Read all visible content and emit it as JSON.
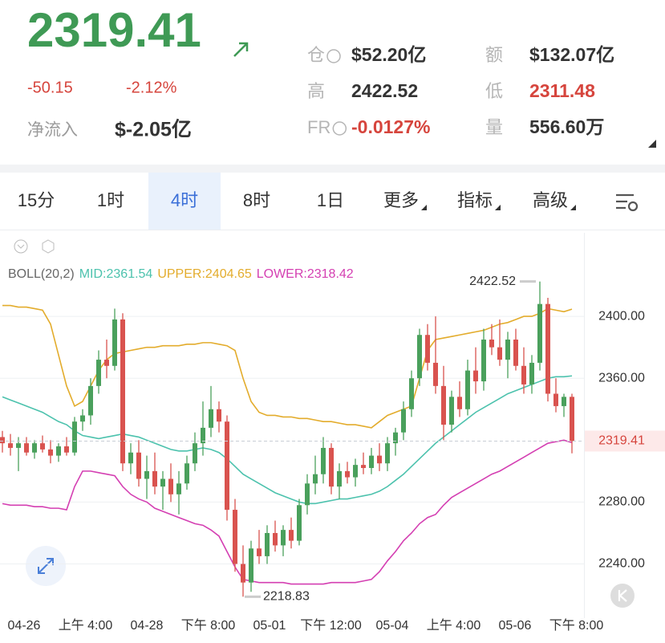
{
  "header": {
    "price": "2319.41",
    "change": "-50.15",
    "change_pct": "-2.12%",
    "net_inflow_label": "净流入",
    "net_inflow": "$-2.05亿",
    "stats": [
      {
        "label": "仓",
        "value": "$52.20亿",
        "color": "#333333",
        "info": true
      },
      {
        "label": "额",
        "value": "$132.07亿",
        "color": "#333333",
        "info": false
      },
      {
        "label": "高",
        "value": "2422.52",
        "color": "#333333",
        "info": false
      },
      {
        "label": "低",
        "value": "2311.48",
        "color": "#d6453d",
        "info": false
      },
      {
        "label": "FR",
        "value": "-0.0127%",
        "color": "#d6453d",
        "info": true
      },
      {
        "label": "量",
        "value": "556.60万",
        "color": "#333333",
        "info": false
      }
    ]
  },
  "tabs": [
    {
      "label": "15分",
      "selected": false
    },
    {
      "label": "1时",
      "selected": false
    },
    {
      "label": "4时",
      "selected": true
    },
    {
      "label": "8时",
      "selected": false
    },
    {
      "label": "1日",
      "selected": false
    },
    {
      "label": "更多",
      "selected": false
    },
    {
      "label": "指标",
      "selected": false
    },
    {
      "label": "高级",
      "selected": false
    }
  ],
  "chart_data": {
    "type": "candlestick",
    "indicator": "BOLL(20,2)",
    "up_color": "#4aa05c",
    "down_color": "#d9534f",
    "ylim": [
      2205,
      2454
    ],
    "yticks": [
      {
        "value": 2240,
        "label": "2240.00"
      },
      {
        "value": 2280,
        "label": "2280.00"
      },
      {
        "value": 2360,
        "label": "2360.00"
      },
      {
        "value": 2400,
        "label": "2400.00"
      }
    ],
    "x_labels": [
      "04-26",
      "上午 4:00",
      "04-28",
      "下午 8:00",
      "05-01",
      "下午 12:00",
      "05-04",
      "上午 4:00",
      "05-06",
      "下午 8:00"
    ],
    "ohlc": [
      [
        2322,
        2326,
        2312,
        2318
      ],
      [
        2318,
        2324,
        2310,
        2315
      ],
      [
        2315,
        2322,
        2300,
        2318
      ],
      [
        2318,
        2322,
        2310,
        2312
      ],
      [
        2312,
        2320,
        2308,
        2318
      ],
      [
        2318,
        2323,
        2312,
        2314
      ],
      [
        2314,
        2320,
        2305,
        2310
      ],
      [
        2310,
        2318,
        2306,
        2316
      ],
      [
        2316,
        2322,
        2310,
        2312
      ],
      [
        2312,
        2335,
        2310,
        2332
      ],
      [
        2332,
        2340,
        2326,
        2336
      ],
      [
        2336,
        2360,
        2330,
        2355
      ],
      [
        2355,
        2378,
        2350,
        2372
      ],
      [
        2372,
        2385,
        2360,
        2368
      ],
      [
        2368,
        2405,
        2365,
        2398
      ],
      [
        2398,
        2402,
        2300,
        2305
      ],
      [
        2305,
        2318,
        2298,
        2312
      ],
      [
        2312,
        2320,
        2290,
        2295
      ],
      [
        2295,
        2310,
        2282,
        2300
      ],
      [
        2300,
        2312,
        2285,
        2290
      ],
      [
        2290,
        2300,
        2275,
        2295
      ],
      [
        2295,
        2305,
        2280,
        2285
      ],
      [
        2285,
        2300,
        2272,
        2292
      ],
      [
        2292,
        2310,
        2288,
        2305
      ],
      [
        2305,
        2325,
        2300,
        2318
      ],
      [
        2318,
        2345,
        2310,
        2328
      ],
      [
        2328,
        2355,
        2322,
        2340
      ],
      [
        2340,
        2345,
        2325,
        2332
      ],
      [
        2332,
        2336,
        2268,
        2275
      ],
      [
        2275,
        2282,
        2235,
        2240
      ],
      [
        2240,
        2252,
        2218.83,
        2228
      ],
      [
        2228,
        2255,
        2222,
        2250
      ],
      [
        2250,
        2262,
        2240,
        2245
      ],
      [
        2245,
        2265,
        2240,
        2260
      ],
      [
        2260,
        2268,
        2248,
        2252
      ],
      [
        2252,
        2265,
        2245,
        2262
      ],
      [
        2262,
        2270,
        2250,
        2255
      ],
      [
        2255,
        2282,
        2252,
        2278
      ],
      [
        2278,
        2298,
        2272,
        2292
      ],
      [
        2292,
        2310,
        2285,
        2298
      ],
      [
        2298,
        2322,
        2292,
        2315
      ],
      [
        2315,
        2318,
        2285,
        2290
      ],
      [
        2290,
        2305,
        2282,
        2300
      ],
      [
        2300,
        2306,
        2292,
        2296
      ],
      [
        2296,
        2308,
        2290,
        2304
      ],
      [
        2304,
        2312,
        2298,
        2302
      ],
      [
        2302,
        2315,
        2298,
        2310
      ],
      [
        2310,
        2318,
        2300,
        2305
      ],
      [
        2305,
        2322,
        2300,
        2318
      ],
      [
        2318,
        2328,
        2310,
        2325
      ],
      [
        2325,
        2345,
        2320,
        2340
      ],
      [
        2340,
        2365,
        2335,
        2360
      ],
      [
        2360,
        2392,
        2355,
        2388
      ],
      [
        2388,
        2395,
        2365,
        2370
      ],
      [
        2370,
        2400,
        2350,
        2355
      ],
      [
        2355,
        2368,
        2320,
        2330
      ],
      [
        2330,
        2352,
        2325,
        2348
      ],
      [
        2348,
        2358,
        2335,
        2340
      ],
      [
        2340,
        2372,
        2336,
        2365
      ],
      [
        2365,
        2380,
        2350,
        2358
      ],
      [
        2358,
        2392,
        2352,
        2385
      ],
      [
        2385,
        2395,
        2375,
        2380
      ],
      [
        2380,
        2398,
        2368,
        2372
      ],
      [
        2372,
        2390,
        2360,
        2385
      ],
      [
        2385,
        2392,
        2365,
        2368
      ],
      [
        2368,
        2380,
        2350,
        2356
      ],
      [
        2356,
        2375,
        2350,
        2370
      ],
      [
        2370,
        2422.52,
        2365,
        2408
      ],
      [
        2408,
        2412,
        2345,
        2350
      ],
      [
        2350,
        2360,
        2338,
        2342
      ],
      [
        2342,
        2350,
        2335,
        2348
      ],
      [
        2348,
        2350,
        2311.48,
        2319.41
      ]
    ],
    "series": [
      {
        "name": "MID:2361.54",
        "color": "#4cc2ad",
        "values": [
          2348,
          2346,
          2344,
          2342,
          2340,
          2338,
          2335,
          2332,
          2330,
          2326,
          2323,
          2322,
          2321,
          2322,
          2323,
          2324,
          2323,
          2322,
          2320,
          2318,
          2316,
          2314,
          2313,
          2313,
          2314,
          2315,
          2314,
          2312,
          2308,
          2303,
          2298,
          2295,
          2292,
          2289,
          2286,
          2284,
          2282,
          2280,
          2279,
          2279,
          2280,
          2281,
          2282,
          2282,
          2283,
          2284,
          2285,
          2287,
          2290,
          2294,
          2298,
          2303,
          2308,
          2313,
          2318,
          2322,
          2326,
          2330,
          2334,
          2338,
          2341,
          2344,
          2347,
          2350,
          2352,
          2354,
          2356,
          2358,
          2360,
          2361,
          2361,
          2361.54
        ]
      },
      {
        "name": "UPPER:2404.65",
        "color": "#e3ac2c",
        "values": [
          2407,
          2407,
          2406,
          2406,
          2405,
          2404,
          2395,
          2375,
          2355,
          2342,
          2345,
          2355,
          2365,
          2372,
          2376,
          2377,
          2378,
          2379,
          2380,
          2380,
          2381,
          2381,
          2381,
          2382,
          2382,
          2383,
          2383,
          2382,
          2381,
          2378,
          2360,
          2345,
          2338,
          2336,
          2336,
          2335,
          2335,
          2334,
          2334,
          2333,
          2332,
          2332,
          2331,
          2330,
          2330,
          2329,
          2328,
          2332,
          2336,
          2338,
          2340,
          2342,
          2360,
          2378,
          2385,
          2386,
          2387,
          2388,
          2389,
          2390,
          2391,
          2393,
          2395,
          2396,
          2398,
          2400,
          2400,
          2402,
          2405,
          2404,
          2403,
          2404.65
        ]
      },
      {
        "name": "LOWER:2318.42",
        "color": "#d43fb2",
        "values": [
          2279,
          2278,
          2278,
          2278,
          2277,
          2277,
          2276,
          2276,
          2275,
          2290,
          2300,
          2300,
          2299,
          2298,
          2297,
          2290,
          2285,
          2282,
          2280,
          2276,
          2274,
          2272,
          2270,
          2268,
          2266,
          2265,
          2262,
          2258,
          2248,
          2238,
          2230,
          2229,
          2228,
          2228,
          2228,
          2228,
          2227,
          2227,
          2227,
          2227,
          2227,
          2228,
          2228,
          2228,
          2228,
          2229,
          2230,
          2235,
          2242,
          2248,
          2255,
          2260,
          2266,
          2270,
          2272,
          2278,
          2283,
          2286,
          2289,
          2292,
          2295,
          2298,
          2300,
          2303,
          2306,
          2309,
          2312,
          2315,
          2318,
          2319,
          2320,
          2318.42
        ]
      }
    ]
  }
}
